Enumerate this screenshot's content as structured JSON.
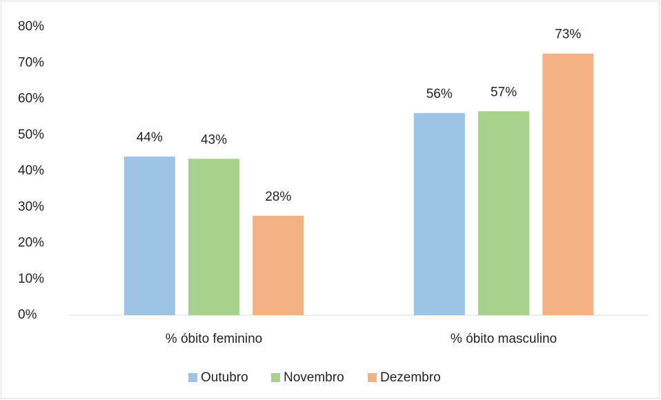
{
  "chart_data": {
    "type": "bar",
    "categories": [
      "% óbito feminino",
      "% óbito masculino"
    ],
    "series": [
      {
        "name": "Outubro",
        "color": "#9dc3e6",
        "values": [
          44,
          56.1
        ],
        "value_labels": [
          "44%",
          "56%"
        ]
      },
      {
        "name": "Novembro",
        "color": "#a9d18e",
        "values": [
          43.4,
          56.6
        ],
        "value_labels": [
          "43%",
          "57%"
        ]
      },
      {
        "name": "Dezembro",
        "color": "#f4b183",
        "values": [
          27.6,
          72.6
        ],
        "value_labels": [
          "28%",
          "73%"
        ]
      }
    ],
    "ylim": [
      0,
      80
    ],
    "yticks": [
      {
        "value": 0,
        "label": "0%"
      },
      {
        "value": 10,
        "label": "10%"
      },
      {
        "value": 20,
        "label": "20%"
      },
      {
        "value": 30,
        "label": "30%"
      },
      {
        "value": 40,
        "label": "40%"
      },
      {
        "value": 50,
        "label": "50%"
      },
      {
        "value": 60,
        "label": "60%"
      },
      {
        "value": 70,
        "label": "70%"
      },
      {
        "value": 80,
        "label": "80%"
      }
    ],
    "grid": false,
    "legend": "bottom"
  }
}
